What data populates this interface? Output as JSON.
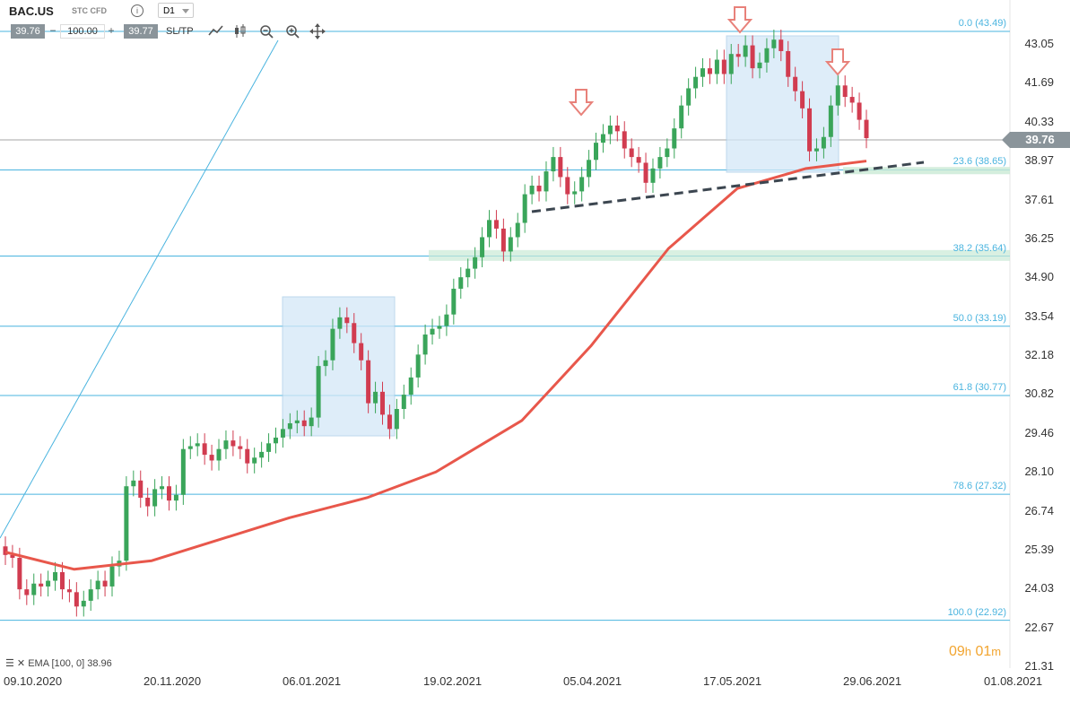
{
  "toolbar": {
    "symbol": "BAC.US",
    "instrument_type": "STC CFD",
    "info_icon": "i",
    "timeframe": "D1",
    "bid": "39.76",
    "ask": "39.77",
    "quantity": "100.00",
    "minus": "−",
    "plus": "+",
    "sltp": "SL/TP",
    "tools": [
      "line-chart-icon",
      "candles-icon",
      "zoom-out-icon",
      "zoom-in-icon",
      "move-icon"
    ]
  },
  "timer": {
    "hours": "09",
    "hours_unit": "h",
    "minutes": "01",
    "minutes_unit": "m"
  },
  "legend": {
    "text": "EMA [100, 0] 38.96"
  },
  "current_price": "39.76",
  "colors": {
    "up": "#3aa55a",
    "down": "#d13c50",
    "ema": "#e8574b",
    "fib": "#4ab4df",
    "box": "#d4e8f7"
  },
  "chart_data": {
    "type": "candlestick",
    "price_axis": [
      "43.05",
      "41.69",
      "40.33",
      "38.97",
      "37.61",
      "36.25",
      "34.90",
      "33.54",
      "32.18",
      "30.82",
      "29.46",
      "28.10",
      "26.74",
      "25.39",
      "24.03",
      "22.67",
      "21.31"
    ],
    "date_axis": [
      "09.10.2020",
      "20.11.2020",
      "06.01.2021",
      "19.02.2021",
      "05.04.2021",
      "17.05.2021",
      "29.06.2021",
      "01.08.2021"
    ],
    "fibonacci": [
      {
        "label": "0.0 (43.49)",
        "value": 43.49
      },
      {
        "label": "23.6 (38.65)",
        "value": 38.65
      },
      {
        "label": "38.2 (35.64)",
        "value": 35.64
      },
      {
        "label": "50.0 (33.19)",
        "value": 33.19
      },
      {
        "label": "61.8 (30.77)",
        "value": 30.77
      },
      {
        "label": "78.6 (27.32)",
        "value": 27.32
      },
      {
        "label": "100.0 (22.92)",
        "value": 22.92
      }
    ],
    "closes": [
      25.2,
      25.1,
      24.0,
      23.8,
      24.2,
      24.1,
      24.3,
      24.6,
      24.0,
      23.9,
      23.4,
      23.6,
      24.0,
      24.3,
      24.1,
      24.8,
      25.0,
      27.6,
      27.8,
      27.2,
      26.9,
      27.5,
      27.6,
      27.1,
      27.3,
      28.9,
      29.0,
      29.1,
      28.7,
      28.5,
      28.9,
      29.2,
      29.0,
      28.9,
      28.4,
      28.6,
      28.8,
      29.1,
      29.3,
      29.6,
      29.8,
      29.9,
      29.7,
      30.0,
      31.8,
      32.0,
      33.1,
      33.5,
      33.3,
      32.6,
      32.0,
      30.5,
      30.9,
      30.1,
      29.6,
      30.3,
      30.8,
      31.4,
      32.2,
      32.9,
      33.1,
      33.2,
      33.6,
      34.5,
      34.9,
      35.2,
      35.6,
      36.3,
      36.9,
      36.6,
      35.8,
      36.3,
      36.8,
      37.8,
      38.1,
      37.9,
      38.6,
      39.1,
      38.4,
      37.8,
      37.9,
      38.4,
      39.0,
      39.6,
      39.9,
      40.2,
      40.0,
      39.4,
      39.1,
      38.9,
      38.2,
      38.7,
      39.1,
      39.4,
      40.1,
      40.9,
      41.5,
      41.9,
      42.2,
      42.0,
      42.5,
      42.0,
      42.7,
      42.6,
      43.0,
      42.2,
      42.4,
      42.9,
      43.2,
      42.8,
      41.9,
      41.4,
      40.8,
      39.3,
      39.4,
      39.8,
      40.9,
      41.6,
      41.2,
      41.0,
      40.4,
      39.76
    ],
    "ema": [
      [
        25.3,
        0
      ],
      [
        24.7,
        0.08
      ],
      [
        25.0,
        0.17
      ],
      [
        26.5,
        0.33
      ],
      [
        27.2,
        0.42
      ],
      [
        28.1,
        0.5
      ],
      [
        29.9,
        0.6
      ],
      [
        32.5,
        0.68
      ],
      [
        35.9,
        0.77
      ],
      [
        38.0,
        0.85
      ],
      [
        38.7,
        0.93
      ],
      [
        38.96,
        1.0
      ]
    ],
    "annotations": [
      "sell-arrow",
      "sell-arrow",
      "sell-arrow"
    ]
  }
}
